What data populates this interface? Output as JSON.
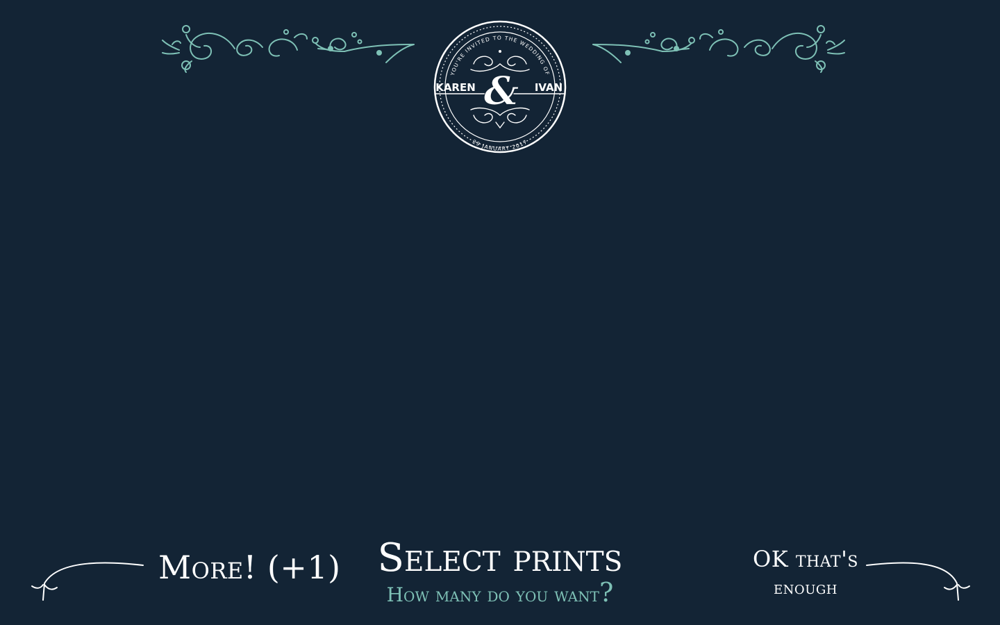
{
  "header": {
    "seal": {
      "top_arc_text": "YOU'RE INVITED TO THE WEDDING OF",
      "name_left": "KAREN",
      "ampersand": "&",
      "name_right": "IVAN",
      "bottom_arc_text": "29 JANUARY 2017"
    },
    "flourish_icon": "ornamental-flourish",
    "accent_color": "#7ec1b6"
  },
  "footer": {
    "more_button_label": "More! (+1)",
    "title": "Select prints",
    "subtitle": "How many do you want",
    "subtitle_mark": "?",
    "ok_line1": "OK that's",
    "ok_line2": "enough"
  },
  "colors": {
    "background": "#132435",
    "text": "#ffffff",
    "accent": "#7ec1b6"
  }
}
